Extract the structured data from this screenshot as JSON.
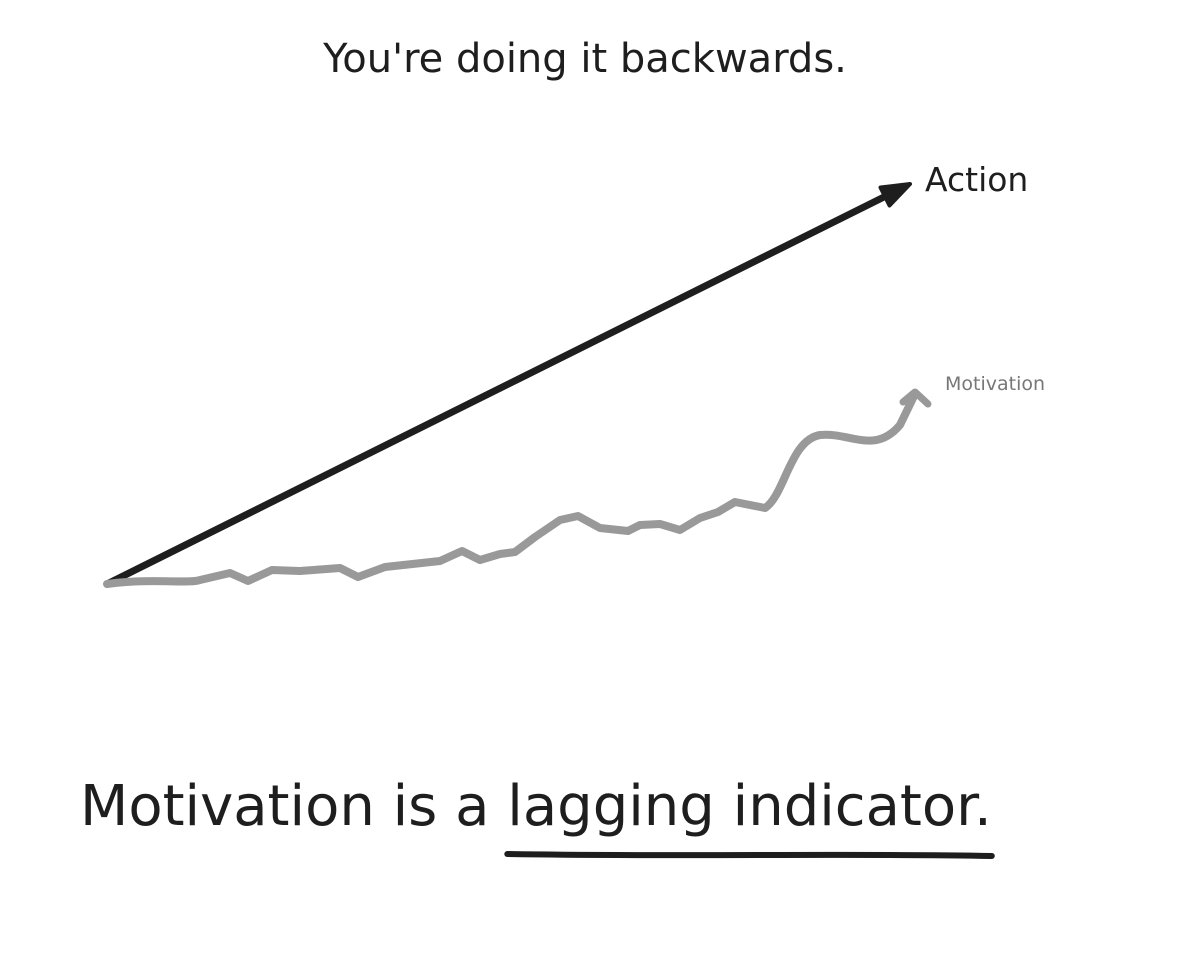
{
  "title": "You're doing it backwards.",
  "labels": {
    "action": "Action",
    "motivation": "Motivation"
  },
  "conclusion": {
    "lead": "Motivation is a ",
    "emphasis": "lagging indicator."
  }
}
